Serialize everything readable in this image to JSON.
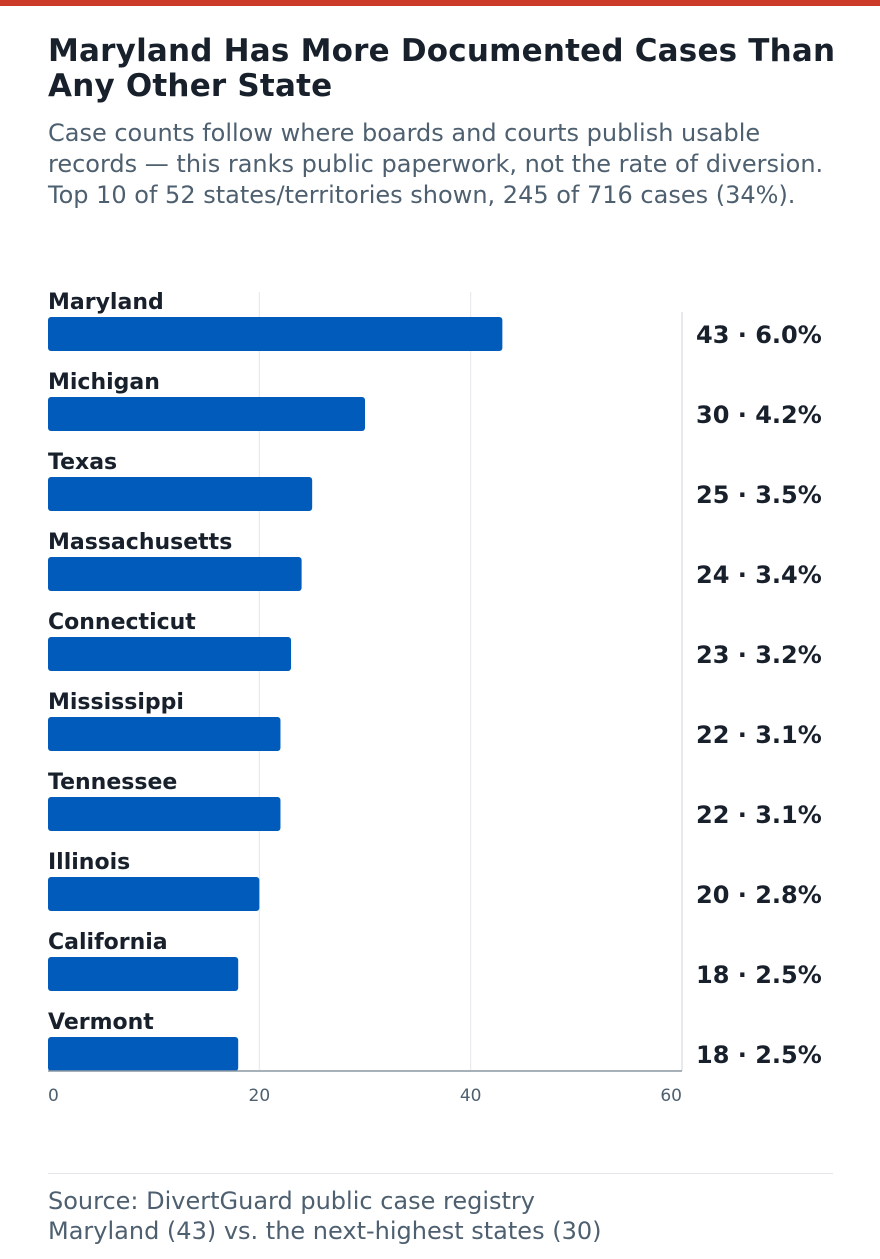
{
  "header": {
    "title": "Maryland Has More Documented Cases Than Any Other State",
    "subtitle": "Case counts follow where boards and courts publish usable records — this ranks public paperwork, not the rate of diversion. Top 10 of 52 states/territories shown, 245 of 716 cases (34%)."
  },
  "chart_data": {
    "type": "bar",
    "orientation": "horizontal",
    "categories": [
      "Maryland",
      "Michigan",
      "Texas",
      "Massachusetts",
      "Connecticut",
      "Mississippi",
      "Tennessee",
      "Illinois",
      "California",
      "Vermont"
    ],
    "values": [
      43,
      30,
      25,
      24,
      23,
      22,
      22,
      20,
      18,
      18
    ],
    "value_labels": [
      "43 · 6.0%",
      "30 · 4.2%",
      "25 · 3.5%",
      "24 · 3.4%",
      "23 · 3.2%",
      "22 · 3.1%",
      "22 · 3.1%",
      "20 · 2.8%",
      "18 · 2.5%",
      "18 · 2.5%"
    ],
    "xlim": [
      0,
      60
    ],
    "xticks": [
      0,
      20,
      40,
      60
    ],
    "xtick_labels": [
      "0",
      "20",
      "40",
      "60"
    ],
    "grid": true,
    "bar_color": "#005bbb"
  },
  "footer": {
    "source": "Source: DivertGuard public case registry",
    "note": "Maryland (43) vs. the next-highest states (30)"
  },
  "colors": {
    "accent_rule": "#cc3a2a",
    "bar": "#005bbb",
    "text": "#17202b",
    "muted": "#4e6070"
  }
}
